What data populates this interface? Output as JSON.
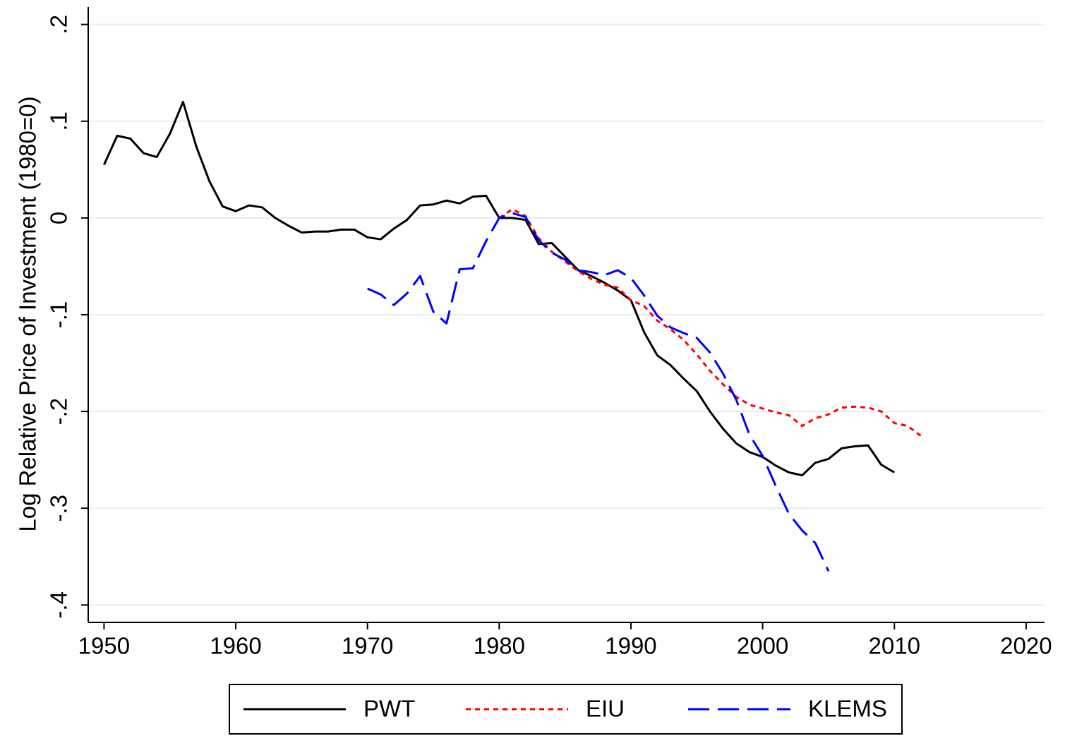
{
  "chart_data": {
    "type": "line",
    "y_label": "Log Relative Price of Investment (1980=0)",
    "x": [
      1950,
      1951,
      1952,
      1953,
      1954,
      1955,
      1956,
      1957,
      1958,
      1959,
      1960,
      1961,
      1962,
      1963,
      1964,
      1965,
      1966,
      1967,
      1968,
      1969,
      1970,
      1971,
      1972,
      1973,
      1974,
      1975,
      1976,
      1977,
      1978,
      1979,
      1980,
      1981,
      1982,
      1983,
      1984,
      1985,
      1986,
      1987,
      1988,
      1989,
      1990,
      1991,
      1992,
      1993,
      1994,
      1995,
      1996,
      1997,
      1998,
      1999,
      2000,
      2001,
      2002,
      2003,
      2004,
      2005,
      2006,
      2007,
      2008,
      2009,
      2010,
      2011,
      2012
    ],
    "series": [
      {
        "name": "PWT",
        "color": "#000000",
        "dash": "none",
        "values": [
          0.055,
          0.085,
          0.082,
          0.067,
          0.063,
          0.087,
          0.12,
          0.074,
          0.038,
          0.012,
          0.007,
          0.013,
          0.011,
          0.0,
          -0.008,
          -0.015,
          -0.014,
          -0.014,
          -0.012,
          -0.012,
          -0.02,
          -0.022,
          -0.011,
          -0.002,
          0.013,
          0.014,
          0.018,
          0.015,
          0.022,
          0.023,
          0,
          0,
          -0.002,
          -0.027,
          -0.026,
          -0.04,
          -0.054,
          -0.06,
          -0.067,
          -0.075,
          -0.085,
          -0.118,
          -0.142,
          -0.152,
          -0.166,
          -0.179,
          -0.2,
          -0.218,
          -0.233,
          -0.242,
          -0.247,
          -0.256,
          -0.263,
          -0.266,
          -0.253,
          -0.249,
          -0.238,
          -0.236,
          -0.235,
          -0.255,
          -0.263,
          null,
          null
        ]
      },
      {
        "name": "EIU",
        "color": "#ff0000",
        "dash": "7,6",
        "values": [
          null,
          null,
          null,
          null,
          null,
          null,
          null,
          null,
          null,
          null,
          null,
          null,
          null,
          null,
          null,
          null,
          null,
          null,
          null,
          null,
          null,
          null,
          null,
          null,
          null,
          null,
          null,
          null,
          null,
          null,
          0,
          0.009,
          0.002,
          -0.021,
          -0.035,
          -0.045,
          -0.055,
          -0.063,
          -0.069,
          -0.072,
          -0.085,
          -0.091,
          -0.106,
          -0.115,
          -0.126,
          -0.141,
          -0.158,
          -0.172,
          -0.185,
          -0.193,
          -0.197,
          -0.201,
          -0.204,
          -0.215,
          -0.207,
          -0.203,
          -0.196,
          -0.195,
          -0.196,
          -0.2,
          -0.212,
          -0.215,
          -0.225
        ]
      },
      {
        "name": "KLEMS",
        "color": "#0000ff",
        "dash": "30,12",
        "values": [
          null,
          null,
          null,
          null,
          null,
          null,
          null,
          null,
          null,
          null,
          null,
          null,
          null,
          null,
          null,
          null,
          null,
          null,
          null,
          null,
          -0.073,
          -0.079,
          -0.09,
          -0.078,
          -0.06,
          -0.097,
          -0.109,
          -0.053,
          -0.052,
          -0.024,
          0,
          0.005,
          0.001,
          -0.023,
          -0.036,
          -0.043,
          -0.054,
          -0.056,
          -0.059,
          -0.054,
          -0.062,
          -0.08,
          -0.101,
          -0.113,
          -0.119,
          -0.124,
          -0.139,
          -0.161,
          -0.188,
          -0.224,
          -0.246,
          -0.277,
          -0.306,
          -0.323,
          -0.336,
          -0.365,
          null,
          null,
          null,
          null,
          null,
          null,
          null
        ]
      }
    ],
    "xlim": [
      1948.8,
      2021.4
    ],
    "xticks": [
      1950,
      1960,
      1970,
      1980,
      1990,
      2000,
      2010,
      2020
    ],
    "ylim": [
      -0.418,
      0.218
    ],
    "yticks": [
      {
        "value": 0.2,
        "label": ".2"
      },
      {
        "value": 0.1,
        "label": ".1"
      },
      0,
      {
        "value": -0.1,
        "label": "-.1"
      },
      {
        "value": -0.2,
        "label": "-.2"
      },
      {
        "value": -0.3,
        "label": "-.3"
      },
      {
        "value": -0.4,
        "label": "-.4"
      }
    ],
    "grid": true,
    "legend": "bottom"
  }
}
